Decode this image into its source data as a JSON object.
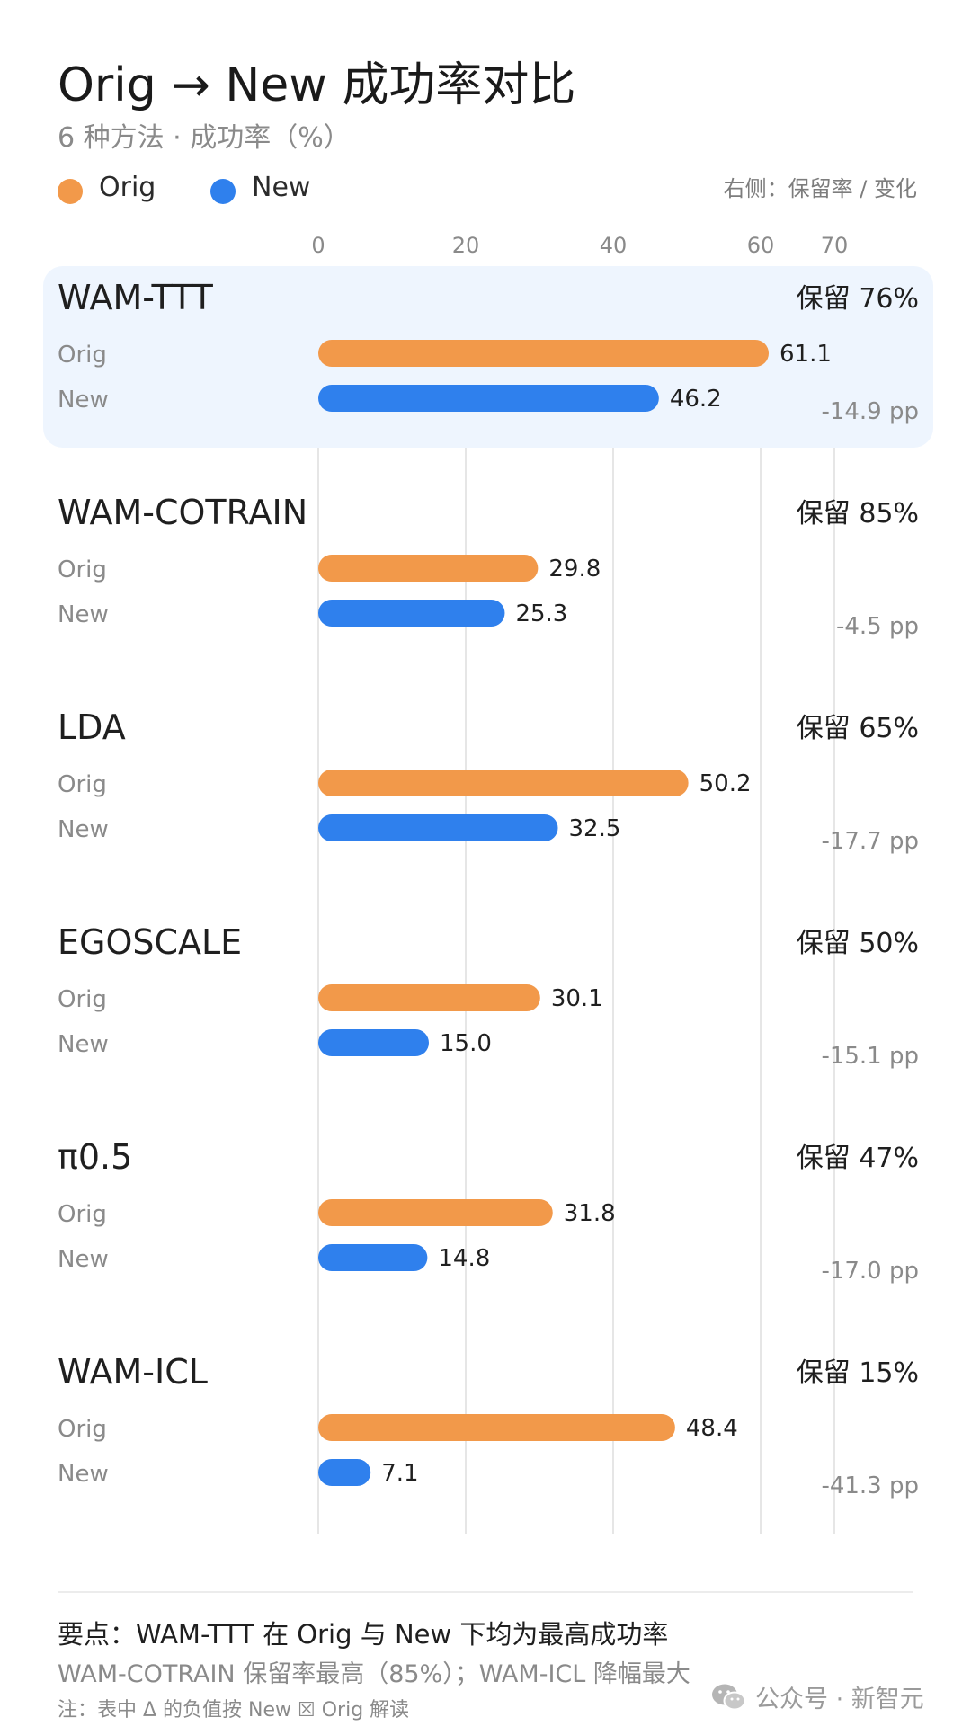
{
  "header": {
    "title": "Orig → New 成功率对比",
    "subtitle": "6 种方法 · 成功率（%）",
    "right_note": "右侧：保留率 / 变化"
  },
  "legend": [
    {
      "label": "Orig",
      "color": "#F2994A"
    },
    {
      "label": "New",
      "color": "#2F80ED"
    }
  ],
  "chart_data": {
    "type": "bar",
    "orientation": "horizontal-grouped",
    "xlim": [
      0,
      70
    ],
    "x_ticks": [
      0,
      20,
      40,
      60,
      70
    ],
    "grid": true,
    "legend_position": "top-left",
    "series_colors": {
      "Orig": "#F2994A",
      "New": "#2F80ED"
    },
    "highlight_color": "#EEF5FE",
    "methods": [
      {
        "name": "WAM-TTT",
        "orig": 61.1,
        "new": 46.2,
        "orig_label": "61.1",
        "new_label": "46.2",
        "retention": "保留 76%",
        "delta": "-14.9 pp",
        "highlight": true
      },
      {
        "name": "WAM-COTRAIN",
        "orig": 29.8,
        "new": 25.3,
        "orig_label": "29.8",
        "new_label": "25.3",
        "retention": "保留 85%",
        "delta": "-4.5 pp",
        "highlight": false
      },
      {
        "name": "LDA",
        "orig": 50.2,
        "new": 32.5,
        "orig_label": "50.2",
        "new_label": "32.5",
        "retention": "保留 65%",
        "delta": "-17.7 pp",
        "highlight": false
      },
      {
        "name": "EGOSCALE",
        "orig": 30.1,
        "new": 15.0,
        "orig_label": "30.1",
        "new_label": "15.0",
        "retention": "保留 50%",
        "delta": "-15.1 pp",
        "highlight": false
      },
      {
        "name": "π0.5",
        "orig": 31.8,
        "new": 14.8,
        "orig_label": "31.8",
        "new_label": "14.8",
        "retention": "保留 47%",
        "delta": "-17.0 pp",
        "highlight": false
      },
      {
        "name": "WAM-ICL",
        "orig": 48.4,
        "new": 7.1,
        "orig_label": "48.4",
        "new_label": "7.1",
        "retention": "保留 15%",
        "delta": "-41.3 pp",
        "highlight": false
      }
    ],
    "row_labels": {
      "orig": "Orig",
      "new": "New"
    }
  },
  "footer": {
    "key_point": "要点：WAM-TTT 在 Orig 与 New 下均为最高成功率",
    "detail": "WAM-COTRAIN 保留率最高（85%）；WAM-ICL 降幅最大",
    "note": "注：表中 Δ 的负值按 New ☒ Orig 解读"
  },
  "watermark": {
    "text": "公众号 · 新智元",
    "icon": "wechat-icon"
  }
}
